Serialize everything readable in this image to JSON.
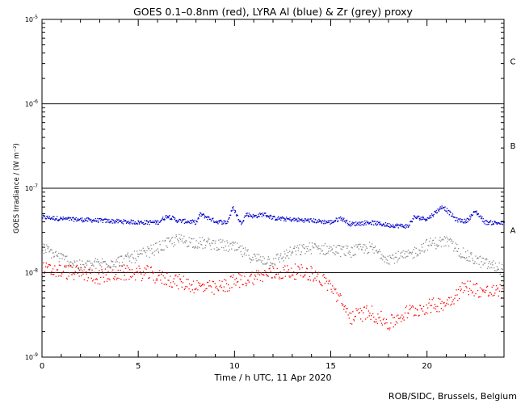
{
  "chart_data": {
    "type": "scatter",
    "title": "GOES 0.1–0.8nm (red), LYRA Al (blue) & Zr (grey) proxy",
    "xlabel": "Time / h UTC, 11 Apr 2020",
    "ylabel": "GOES Irradiance / (W m⁻²)",
    "xlim": [
      0,
      24
    ],
    "ylim": [
      1e-09,
      1e-05
    ],
    "yscale": "log",
    "x_ticks": [
      0,
      5,
      10,
      15,
      20
    ],
    "y_ticks": [
      {
        "value": 1e-09,
        "base": "10",
        "exp": "-9"
      },
      {
        "value": 1e-08,
        "base": "10",
        "exp": "-8"
      },
      {
        "value": 1e-07,
        "base": "10",
        "exp": "-7"
      },
      {
        "value": 1e-06,
        "base": "10",
        "exp": "-6"
      },
      {
        "value": 1e-05,
        "base": "10",
        "exp": "-5"
      }
    ],
    "flare_levels": [
      {
        "label": "A",
        "value": 1e-08
      },
      {
        "label": "B",
        "value": 1e-07
      },
      {
        "label": "C",
        "value": 1e-06
      }
    ],
    "class_labels": [
      {
        "label": "A",
        "value": 3.2e-08
      },
      {
        "label": "B",
        "value": 3.2e-07
      },
      {
        "label": "C",
        "value": 3.2e-06
      }
    ],
    "series": [
      {
        "name": "LYRA Al proxy",
        "color": "#0000cc",
        "x": [
          0,
          1,
          2,
          3,
          4,
          5,
          6,
          6.5,
          7,
          8,
          8.2,
          9,
          9.6,
          9.9,
          10.3,
          10.6,
          11,
          11.5,
          12,
          13,
          14,
          15,
          15.5,
          16,
          17,
          18,
          19,
          19.3,
          20,
          20.8,
          21.5,
          22,
          22.5,
          23,
          24
        ],
        "values": [
          4.6e-08,
          4.4e-08,
          4.3e-08,
          4.2e-08,
          4.1e-08,
          4e-08,
          4e-08,
          4.8e-08,
          4.2e-08,
          4e-08,
          5e-08,
          4.1e-08,
          4e-08,
          6e-08,
          3.9e-08,
          5e-08,
          4.7e-08,
          5e-08,
          4.5e-08,
          4.3e-08,
          4.2e-08,
          4e-08,
          4.5e-08,
          3.8e-08,
          4e-08,
          3.7e-08,
          3.6e-08,
          4.6e-08,
          4.4e-08,
          6.2e-08,
          4.3e-08,
          4.1e-08,
          5.4e-08,
          4e-08,
          3.9e-08
        ]
      },
      {
        "name": "LYRA Zr proxy",
        "color": "#888888",
        "x": [
          0,
          1,
          2,
          3,
          4,
          5,
          6,
          7,
          8,
          9,
          10,
          11,
          12,
          13,
          14,
          15,
          16,
          17,
          18,
          19,
          20,
          21,
          22,
          23,
          24
        ],
        "values": [
          2e-08,
          1.5e-08,
          1.2e-08,
          1.3e-08,
          1.4e-08,
          1.6e-08,
          2e-08,
          2.5e-08,
          2.3e-08,
          2.2e-08,
          2e-08,
          1.5e-08,
          1.4e-08,
          1.8e-08,
          2e-08,
          1.9e-08,
          1.8e-08,
          2e-08,
          1.5e-08,
          1.6e-08,
          2.2e-08,
          2.4e-08,
          1.6e-08,
          1.3e-08,
          1.1e-08
        ]
      },
      {
        "name": "GOES 0.1–0.8nm",
        "color": "#ff0000",
        "x": [
          0,
          1,
          2,
          3,
          4,
          5,
          5.5,
          6,
          7,
          8,
          9,
          10,
          11,
          12,
          13,
          14,
          15,
          16,
          17,
          18,
          19,
          20,
          21,
          22,
          23,
          24
        ],
        "values": [
          1.1e-08,
          1.05e-08,
          1e-08,
          9e-09,
          1e-08,
          1e-08,
          1e-08,
          9e-09,
          8e-09,
          7e-09,
          6.5e-09,
          8e-09,
          9e-09,
          1e-08,
          1.05e-08,
          1e-08,
          7e-09,
          3e-09,
          3.5e-09,
          2.5e-09,
          3.5e-09,
          4e-09,
          4.5e-09,
          7e-09,
          6e-09,
          6e-09
        ]
      }
    ]
  },
  "credit": "ROB/SIDC, Brussels, Belgium"
}
